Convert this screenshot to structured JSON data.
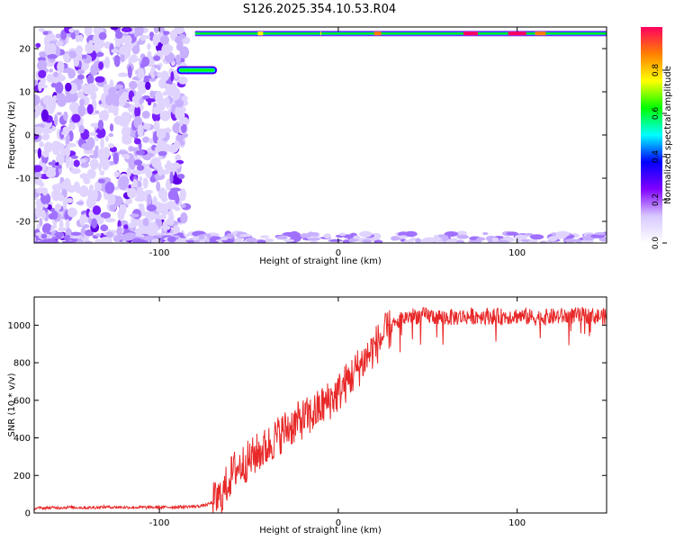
{
  "figure_title": "S126.2025.354.10.53.R04",
  "chart_data": [
    {
      "type": "heatmap",
      "xlabel": "Height of straight line (km)",
      "ylabel": "Frequency (Hz)",
      "xlim": [
        -170,
        150
      ],
      "ylim": [
        -25,
        25
      ],
      "x_ticks": [
        -100,
        0,
        100
      ],
      "y_ticks": [
        -20,
        -10,
        0,
        10,
        20
      ],
      "colorbar": {
        "label": "Normalized spectral amplitude",
        "range": [
          0,
          1
        ],
        "ticks": [
          0.0,
          0.2,
          0.4,
          0.6,
          0.8
        ],
        "colormap": [
          "#ffffff",
          "#d8c8ff",
          "#8000ff",
          "#0000ff",
          "#00ffff",
          "#00ff00",
          "#ffff00",
          "#ff8000",
          "#ff0060"
        ]
      },
      "features": [
        {
          "region": "noise speckle",
          "x_range": [
            -170,
            -85
          ],
          "freq_range": [
            -25,
            25
          ],
          "amplitude": 0.08
        },
        {
          "region": "echo line near top",
          "x_range": [
            -80,
            150
          ],
          "freq": 23.5,
          "amplitude": 0.5
        },
        {
          "region": "short segment",
          "x_range": [
            -88,
            -70
          ],
          "freq": 15,
          "amplitude": 0.5
        },
        {
          "region": "faint lower edge",
          "x_range": [
            -170,
            150
          ],
          "freq": -24,
          "amplitude": 0.05
        }
      ]
    },
    {
      "type": "line",
      "xlabel": "Height of straight line (km)",
      "ylabel": "SNR (10 * v/v)",
      "xlim": [
        -170,
        150
      ],
      "ylim": [
        0,
        1150
      ],
      "x_ticks": [
        -100,
        0,
        100
      ],
      "y_ticks": [
        0,
        200,
        400,
        600,
        800,
        1000
      ],
      "color": "#e82828",
      "x": [
        -170,
        -160,
        -150,
        -140,
        -130,
        -120,
        -110,
        -100,
        -90,
        -80,
        -75,
        -70,
        -65,
        -62,
        -58,
        -55,
        -50,
        -45,
        -40,
        -35,
        -30,
        -25,
        -20,
        -15,
        -10,
        -5,
        0,
        5,
        10,
        15,
        20,
        25,
        30,
        35,
        40,
        50,
        60,
        70,
        80,
        90,
        100,
        110,
        120,
        130,
        140,
        150
      ],
      "values": [
        25,
        28,
        30,
        28,
        32,
        30,
        30,
        30,
        32,
        35,
        40,
        55,
        90,
        160,
        230,
        250,
        280,
        320,
        350,
        400,
        440,
        470,
        500,
        520,
        560,
        600,
        640,
        700,
        760,
        820,
        880,
        940,
        990,
        1030,
        1050,
        1050,
        1040,
        1045,
        1050,
        1045,
        1050,
        1040,
        1045,
        1050,
        1050,
        1045
      ]
    }
  ]
}
